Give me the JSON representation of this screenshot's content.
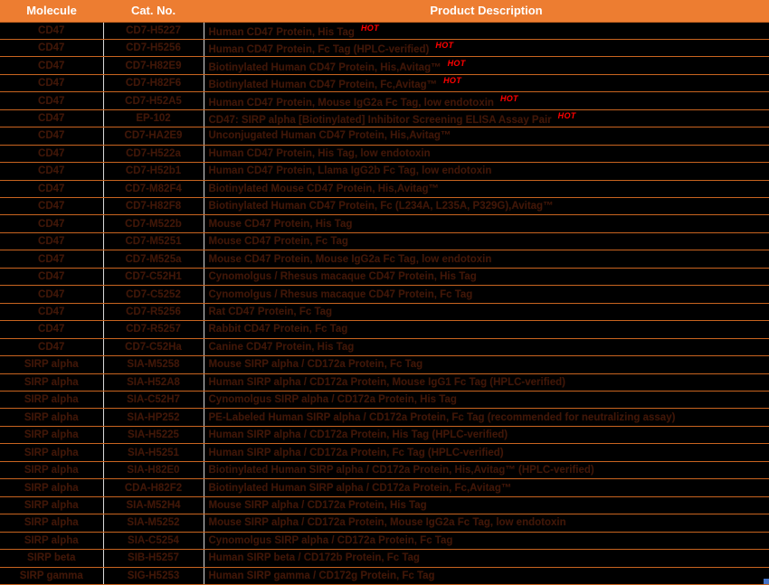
{
  "table": {
    "columns": [
      "Molecule",
      "Cat. No.",
      "Product Description"
    ],
    "hot_label": "HOT",
    "rows": [
      {
        "molecule": "CD47",
        "cat_no": "CD7-H5227",
        "description": "Human CD47 Protein, His Tag",
        "hot": true
      },
      {
        "molecule": "CD47",
        "cat_no": "CD7-H5256",
        "description": "Human CD47 Protein, Fc Tag (HPLC-verified)",
        "hot": true
      },
      {
        "molecule": "CD47",
        "cat_no": "CD7-H82E9",
        "description": "Biotinylated Human CD47 Protein, His,Avitag™",
        "hot": true
      },
      {
        "molecule": "CD47",
        "cat_no": "CD7-H82F6",
        "description": "Biotinylated Human CD47 Protein, Fc,Avitag™",
        "hot": true
      },
      {
        "molecule": "CD47",
        "cat_no": "CD7-H52A5",
        "description": "Human CD47 Protein, Mouse IgG2a Fc Tag, low endotoxin",
        "hot": true
      },
      {
        "molecule": "CD47",
        "cat_no": "EP-102",
        "description": "CD47: SIRP alpha [Biotinylated] Inhibitor Screening ELISA Assay Pair",
        "hot": true
      },
      {
        "molecule": "CD47",
        "cat_no": "CD7-HA2E9",
        "description": "Unconjugated Human CD47 Protein, His,Avitag™",
        "hot": false
      },
      {
        "molecule": "CD47",
        "cat_no": "CD7-H522a",
        "description": "Human CD47 Protein, His Tag, low endotoxin",
        "hot": false
      },
      {
        "molecule": "CD47",
        "cat_no": "CD7-H52b1",
        "description": "Human CD47 Protein, Llama IgG2b Fc Tag, low endotoxin",
        "hot": false
      },
      {
        "molecule": "CD47",
        "cat_no": "CD7-M82F4",
        "description": "Biotinylated Mouse CD47 Protein, His,Avitag™",
        "hot": false
      },
      {
        "molecule": "CD47",
        "cat_no": "CD7-H82F8",
        "description": "Biotinylated Human CD47 Protein, Fc (L234A, L235A, P329G),Avitag™",
        "hot": false
      },
      {
        "molecule": "CD47",
        "cat_no": "CD7-M522b",
        "description": "Mouse CD47 Protein, His Tag",
        "hot": false
      },
      {
        "molecule": "CD47",
        "cat_no": "CD7-M5251",
        "description": "Mouse CD47 Protein, Fc Tag",
        "hot": false
      },
      {
        "molecule": "CD47",
        "cat_no": "CD7-M525a",
        "description": "Mouse CD47 Protein, Mouse IgG2a Fc Tag, low endotoxin",
        "hot": false
      },
      {
        "molecule": "CD47",
        "cat_no": "CD7-C52H1",
        "description": "Cynomolgus / Rhesus macaque CD47 Protein, His Tag",
        "hot": false
      },
      {
        "molecule": "CD47",
        "cat_no": "CD7-C5252",
        "description": "Cynomolgus / Rhesus macaque CD47 Protein, Fc Tag",
        "hot": false
      },
      {
        "molecule": "CD47",
        "cat_no": "CD7-R5256",
        "description": "Rat CD47 Protein, Fc Tag",
        "hot": false
      },
      {
        "molecule": "CD47",
        "cat_no": "CD7-R5257",
        "description": "Rabbit CD47 Protein, Fc Tag",
        "hot": false
      },
      {
        "molecule": "CD47",
        "cat_no": "CD7-C52Ha",
        "description": "Canine CD47 Protein, His Tag",
        "hot": false
      },
      {
        "molecule": "SIRP alpha",
        "cat_no": "SIA-M5258",
        "description": "Mouse SIRP alpha / CD172a Protein, Fc Tag",
        "hot": false
      },
      {
        "molecule": "SIRP alpha",
        "cat_no": "SIA-H52A8",
        "description": "Human SIRP alpha / CD172a Protein, Mouse IgG1 Fc Tag (HPLC-verified)",
        "hot": false
      },
      {
        "molecule": "SIRP alpha",
        "cat_no": "SIA-C52H7",
        "description": "Cynomolgus SIRP alpha / CD172a Protein, His Tag",
        "hot": false
      },
      {
        "molecule": "SIRP alpha",
        "cat_no": "SIA-HP252",
        "description": "PE-Labeled Human SIRP alpha / CD172a Protein, Fc Tag (recommended for neutralizing assay)",
        "hot": false
      },
      {
        "molecule": "SIRP alpha",
        "cat_no": "SIA-H5225",
        "description": "Human SIRP alpha / CD172a Protein, His Tag (HPLC-verified)",
        "hot": false
      },
      {
        "molecule": "SIRP alpha",
        "cat_no": "SIA-H5251",
        "description": "Human SIRP alpha / CD172a Protein, Fc Tag (HPLC-verified)",
        "hot": false
      },
      {
        "molecule": "SIRP alpha",
        "cat_no": "SIA-H82E0",
        "description": "Biotinylated Human SIRP alpha / CD172a Protein, His,Avitag™ (HPLC-verified)",
        "hot": false
      },
      {
        "molecule": "SIRP alpha",
        "cat_no": "CDA-H82F2",
        "description": "Biotinylated Human SIRP alpha / CD172a Protein, Fc,Avitag™",
        "hot": false
      },
      {
        "molecule": "SIRP alpha",
        "cat_no": "SIA-M52H4",
        "description": "Mouse SIRP alpha / CD172a Protein, His Tag",
        "hot": false
      },
      {
        "molecule": "SIRP alpha",
        "cat_no": "SIA-M5252",
        "description": "Mouse SIRP alpha / CD172a Protein, Mouse IgG2a Fc Tag, low endotoxin",
        "hot": false
      },
      {
        "molecule": "SIRP alpha",
        "cat_no": "SIA-C5254",
        "description": "Cynomolgus SIRP alpha / CD172a Protein, Fc Tag",
        "hot": false
      },
      {
        "molecule": "SIRP beta",
        "cat_no": "SIB-H5257",
        "description": "Human SIRP beta / CD172b Protein, Fc Tag",
        "hot": false
      },
      {
        "molecule": "SIRP gamma",
        "cat_no": "SIG-H5253",
        "description": "Human SIRP gamma / CD172g Protein, Fc Tag",
        "hot": false
      }
    ]
  },
  "colors": {
    "header_bg": "#ed7d31",
    "header_text": "#ffffff",
    "row_bg": "#000000",
    "row_text": "#401708",
    "hot": "#ff0000",
    "grid_vertical": "#d9d9d9",
    "grid_horizontal": "#c86420",
    "handle": "#4472c4"
  }
}
